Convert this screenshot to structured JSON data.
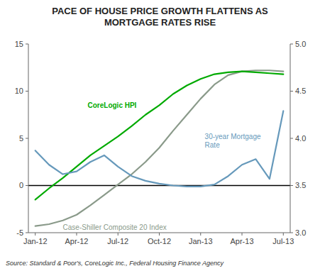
{
  "chart_data": {
    "type": "line",
    "title": "PACE OF HOUSE PRICE GROWTH FLATTENS AS\nMORTGAGE RATES RISE",
    "source": "Source: Standard & Poor's, CoreLogic Inc., Federal Housing Finance Agency",
    "categories": [
      "Jan-12",
      null,
      null,
      "Apr-12",
      null,
      null,
      "Jul-12",
      null,
      null,
      "Oct-12",
      null,
      null,
      "Jan-13",
      null,
      null,
      "Apr-13",
      null,
      null,
      "Jul-13"
    ],
    "series": [
      {
        "name": "Case-Shiller Composite 20 Index",
        "color": "#8A9A8A",
        "values": [
          -4.3,
          -4.1,
          -3.7,
          -3.1,
          -2.1,
          -1.0,
          0.1,
          1.2,
          2.5,
          4.0,
          5.8,
          7.5,
          9.2,
          10.7,
          11.7,
          12.1,
          12.2,
          12.2,
          12.1
        ]
      },
      {
        "name": "CoreLogic HPI",
        "color": "#00AA00",
        "values": [
          -1.5,
          -0.3,
          0.8,
          2.0,
          3.2,
          4.2,
          5.2,
          6.3,
          7.5,
          8.5,
          9.7,
          10.6,
          11.3,
          11.8,
          12.0,
          12.1,
          12.0,
          11.9,
          11.8
        ]
      },
      {
        "name": "30-year Mortgage\nRate",
        "color": "#6699BB",
        "axis": "y2",
        "values": [
          3.87,
          3.72,
          3.62,
          3.65,
          3.75,
          3.82,
          3.7,
          3.6,
          3.55,
          3.52,
          3.5,
          3.49,
          3.49,
          3.51,
          3.6,
          3.72,
          3.78,
          3.57,
          4.29
        ]
      }
    ],
    "ylim": [
      -5,
      15
    ],
    "yticks": [
      -5,
      0,
      5,
      10,
      15
    ],
    "y2lim": [
      3.0,
      5.0
    ],
    "y2ticks": [
      {
        "value": 3.0,
        "label": "3.0"
      },
      3.5,
      {
        "value": 4.0,
        "label": "4.0"
      },
      4.5,
      {
        "value": 5.0,
        "label": "5.0"
      }
    ],
    "grid": false
  }
}
